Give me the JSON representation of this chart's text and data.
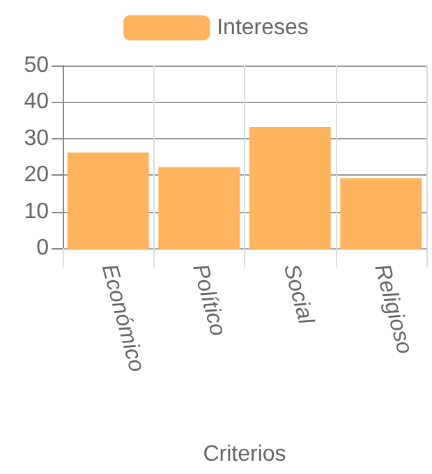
{
  "chart_data": {
    "type": "bar",
    "xlabel": "Criterios",
    "categories": [
      "Económico",
      "Político",
      "Social",
      "Religioso"
    ],
    "series": [
      {
        "name": "Intereses",
        "color": "#ffb35c",
        "values": [
          26,
          22,
          33,
          19
        ]
      }
    ],
    "ylim": [
      0,
      50
    ],
    "yticks": [
      0,
      10,
      20,
      30,
      40,
      50
    ],
    "grid": true,
    "legend": "top"
  }
}
